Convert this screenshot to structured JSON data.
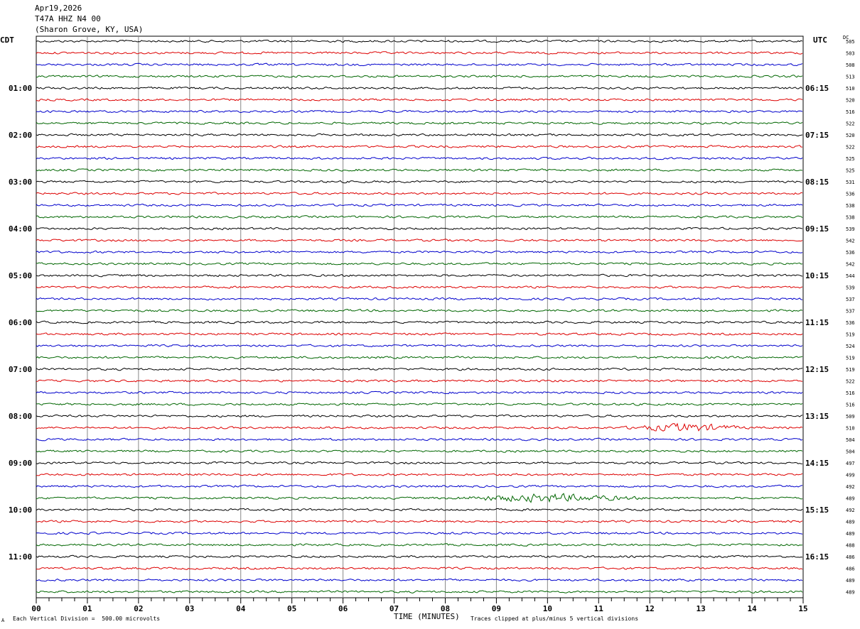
{
  "header": {
    "date": "Apr19,2026",
    "station": "T47A HHZ N4 00",
    "location": "(Sharon Grove, KY, USA)"
  },
  "left_timezone": "CDT",
  "right_timezone": "UTC",
  "dc_label": "DC",
  "footer": {
    "scale_note": "Each Vertical Division =  500.00 microvolts",
    "clip_note": "Traces clipped at plus/minus 5 vertical divisions",
    "corner_mark": "A"
  },
  "chart_data": {
    "type": "line",
    "title": "",
    "xlabel": "TIME (MINUTES)",
    "xlim": [
      0,
      15
    ],
    "x_ticks": [
      "00",
      "01",
      "02",
      "03",
      "04",
      "05",
      "06",
      "07",
      "08",
      "09",
      "10",
      "11",
      "12",
      "13",
      "14",
      "15"
    ],
    "trace_colors": [
      "#000000",
      "#dd0000",
      "#0000cc",
      "#006600"
    ],
    "left_hour_labels": [
      "01:00",
      "02:00",
      "03:00",
      "04:00",
      "05:00",
      "06:00",
      "07:00",
      "08:00",
      "09:00",
      "10:00",
      "11:00"
    ],
    "right_hour_labels": [
      "06:15",
      "07:15",
      "08:15",
      "09:15",
      "10:15",
      "11:15",
      "12:15",
      "13:15",
      "14:15",
      "15:15",
      "16:15"
    ],
    "dc_offsets": [
      505,
      503,
      508,
      513,
      510,
      520,
      516,
      522,
      520,
      522,
      525,
      525,
      531,
      536,
      538,
      538,
      539,
      542,
      536,
      542,
      544,
      539,
      537,
      537,
      536,
      519,
      524,
      519,
      519,
      522,
      516,
      516,
      509,
      510,
      504,
      504,
      497,
      499,
      492,
      489,
      492,
      489,
      489,
      488,
      486,
      486,
      489,
      489
    ],
    "events": [
      {
        "trace": 33,
        "start_min": 11.4,
        "end_min": 14.0,
        "label": ""
      },
      {
        "trace": 39,
        "start_min": 8.0,
        "end_min": 12.0,
        "label": ""
      }
    ]
  }
}
